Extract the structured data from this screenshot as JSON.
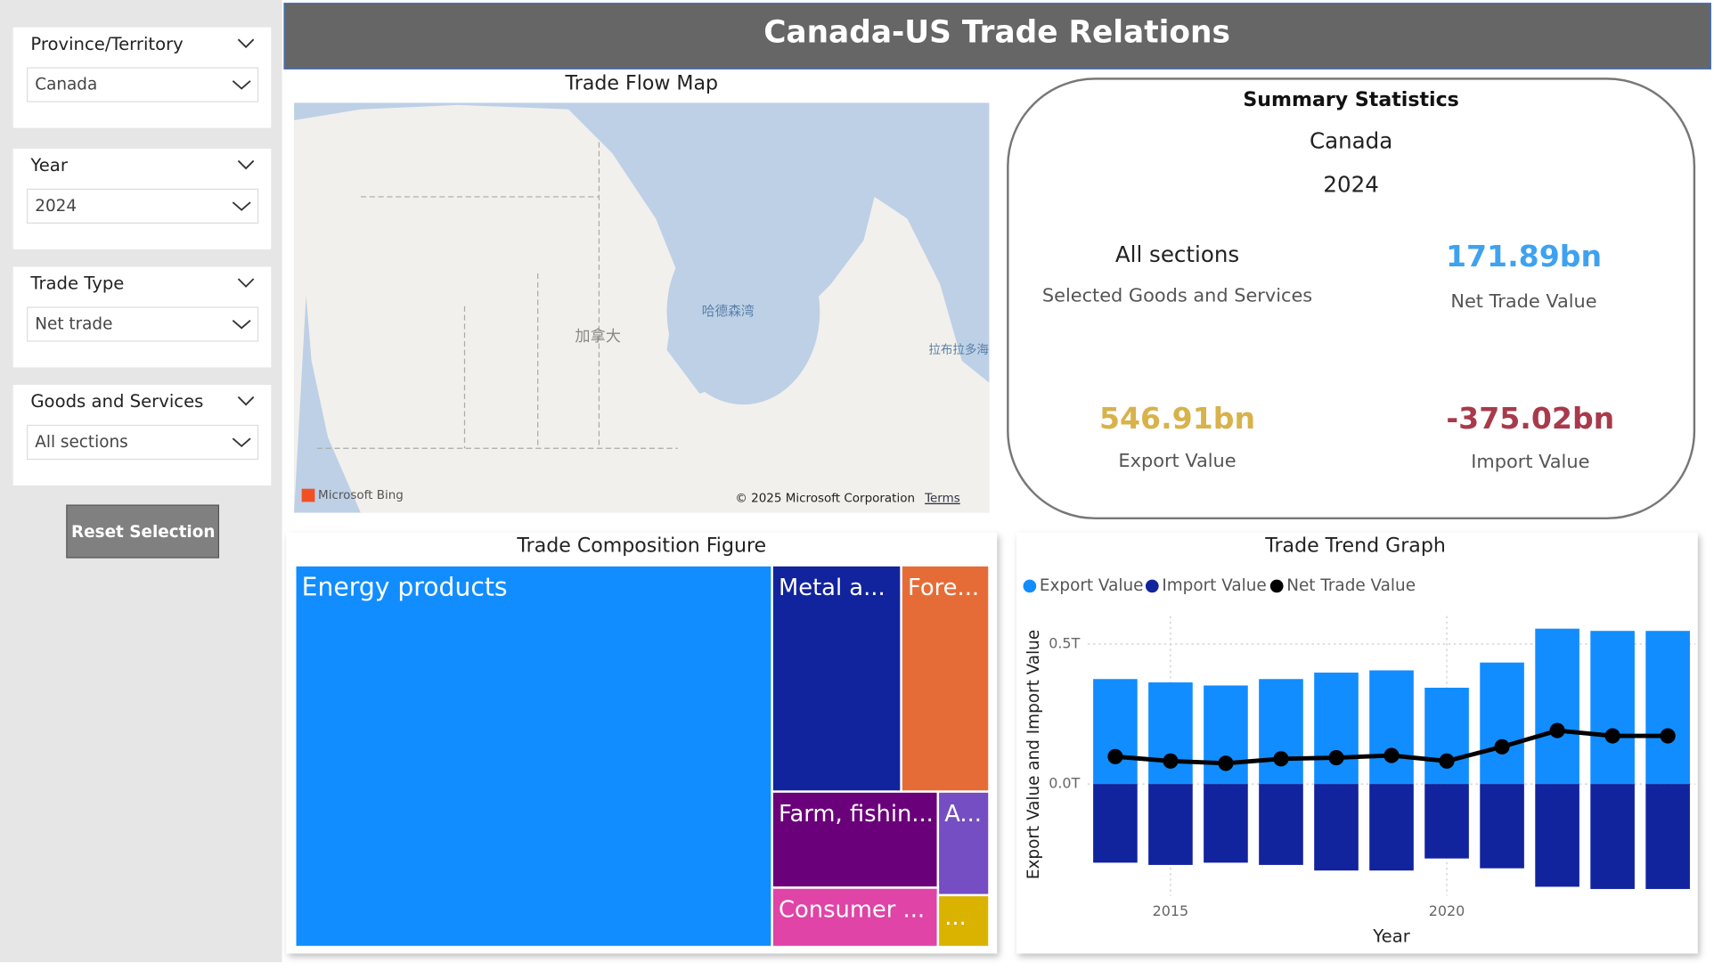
{
  "filters": [
    {
      "label": "Province/Territory",
      "value": "Canada"
    },
    {
      "label": "Year",
      "value": "2024"
    },
    {
      "label": "Trade Type",
      "value": "Net trade"
    },
    {
      "label": "Goods and Services",
      "value": "All sections"
    }
  ],
  "reset_button": "Reset Selection",
  "header": {
    "title": "Canada-US Trade Relations"
  },
  "map": {
    "title": "Trade Flow Map",
    "labels": [
      "加拿大",
      "哈德森湾",
      "拉布拉多海"
    ],
    "provider": "Microsoft Bing",
    "copyright": "© 2025 Microsoft Corporation",
    "terms": "Terms"
  },
  "summary": {
    "title": "Summary Statistics",
    "region": "Canada",
    "year": "2024",
    "section": "All sections",
    "section_caption": "Selected Goods and Services",
    "net": {
      "value": "171.89bn",
      "label": "Net Trade Value",
      "color": "#3fa2f0"
    },
    "export": {
      "value": "546.91bn",
      "label": "Export Value",
      "color": "#d8b24a"
    },
    "import": {
      "value": "-375.02bn",
      "label": "Import Value",
      "color": "#a83a4c"
    }
  },
  "treemap": {
    "title": "Trade Composition Figure",
    "items": [
      {
        "label": "Energy products",
        "value": 68.5,
        "color": "#118dff"
      },
      {
        "label": "Metal a...",
        "value": 11,
        "color": "#12239e"
      },
      {
        "label": "Fore...",
        "value": 7.5,
        "color": "#e66c37"
      },
      {
        "label": "Farm, fishin...",
        "value": 6,
        "color": "#6b007b"
      },
      {
        "label": "A...",
        "value": 2,
        "color": "#744ec2"
      },
      {
        "label": "Consumer ...",
        "value": 3.7,
        "color": "#e044a7"
      },
      {
        "label": "...",
        "value": 1,
        "color": "#d9b300"
      }
    ]
  },
  "trend_chart": {
    "type": "bar",
    "title": "Trade Trend Graph",
    "x_label": "Year",
    "y_label": "Export Value and Import Value",
    "x": [
      2014,
      2015,
      2016,
      2017,
      2018,
      2019,
      2020,
      2021,
      2022,
      2023,
      2024
    ],
    "series": [
      {
        "name": "Export Value",
        "color": "#118dff",
        "values": [
          0.375,
          0.363,
          0.352,
          0.375,
          0.398,
          0.406,
          0.344,
          0.434,
          0.555,
          0.547,
          0.547
        ]
      },
      {
        "name": "Import Value",
        "color": "#12239e",
        "values": [
          -0.281,
          -0.289,
          -0.281,
          -0.289,
          -0.309,
          -0.309,
          -0.266,
          -0.301,
          -0.367,
          -0.375,
          -0.375
        ]
      },
      {
        "name": "Net Trade Value",
        "color": "#000000",
        "type": "line",
        "values": [
          0.098,
          0.082,
          0.074,
          0.09,
          0.094,
          0.102,
          0.082,
          0.133,
          0.191,
          0.172,
          0.172
        ]
      }
    ],
    "xlim": [
      2013.5,
      2024.5
    ],
    "xticks": [
      2015,
      2020
    ],
    "ylim": [
      -0.4,
      0.6
    ],
    "yticks": [
      {
        "value": 0,
        "label": "0.0T"
      },
      {
        "value": 0.5,
        "label": "0.5T"
      }
    ],
    "grid": true
  }
}
